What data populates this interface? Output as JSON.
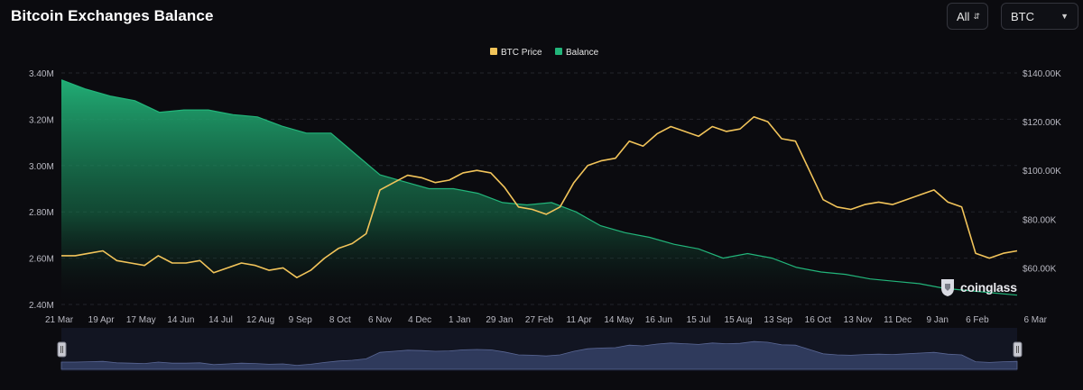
{
  "title": "Bitcoin Exchanges Balance",
  "controls": {
    "range_select": "All",
    "asset_select": "BTC"
  },
  "logo_text": "coinglass",
  "colors": {
    "price": "#f2c45a",
    "balance": "#22b57a",
    "background": "#0b0b0f",
    "navigator": "#2f3a5c"
  },
  "chart_data": {
    "type": "area",
    "legend_position": "top-center",
    "grid": true,
    "x_ticks": [
      "21 Mar",
      "19 Apr",
      "17 May",
      "14 Jun",
      "14 Jul",
      "12 Aug",
      "9 Sep",
      "8 Oct",
      "6 Nov",
      "4 Dec",
      "1 Jan",
      "29 Jan",
      "27 Feb",
      "11 Apr",
      "14 May",
      "16 Jun",
      "15 Jul",
      "15 Aug",
      "13 Sep",
      "16 Oct",
      "13 Nov",
      "11 Dec",
      "9 Jan",
      "6 Feb",
      "6 Mar"
    ],
    "y_left": {
      "ylim": [
        2.4,
        3.4
      ],
      "ticks": [
        "2.40M",
        "2.60M",
        "2.80M",
        "3.00M",
        "3.20M",
        "3.40M"
      ]
    },
    "y_right": {
      "ylim": [
        45,
        140
      ],
      "ticks": [
        "$60.00K",
        "$80.00K",
        "$100.00K",
        "$120.00K",
        "$140.00K"
      ]
    },
    "series": [
      {
        "name": "Balance",
        "axis": "left",
        "unit": "M BTC",
        "values": [
          3.37,
          3.33,
          3.3,
          3.28,
          3.23,
          3.24,
          3.24,
          3.22,
          3.21,
          3.17,
          3.14,
          3.14,
          3.05,
          2.96,
          2.93,
          2.9,
          2.9,
          2.88,
          2.84,
          2.83,
          2.84,
          2.8,
          2.74,
          2.71,
          2.69,
          2.66,
          2.64,
          2.6,
          2.62,
          2.6,
          2.56,
          2.54,
          2.53,
          2.51,
          2.5,
          2.49,
          2.47,
          2.46,
          2.45,
          2.44
        ]
      },
      {
        "name": "BTC Price",
        "axis": "right",
        "unit": "$K",
        "values": [
          65,
          65,
          66,
          67,
          63,
          62,
          61,
          65,
          62,
          62,
          63,
          58,
          60,
          62,
          61,
          59,
          60,
          56,
          59,
          64,
          68,
          70,
          74,
          92,
          95,
          98,
          97,
          95,
          96,
          99,
          100,
          99,
          93,
          85,
          84,
          82,
          85,
          95,
          102,
          104,
          105,
          112,
          110,
          115,
          118,
          116,
          114,
          118,
          116,
          117,
          122,
          120,
          113,
          112,
          100,
          88,
          85,
          84,
          86,
          87,
          86,
          88,
          90,
          92,
          87,
          85,
          66,
          64,
          66,
          67
        ]
      }
    ]
  }
}
